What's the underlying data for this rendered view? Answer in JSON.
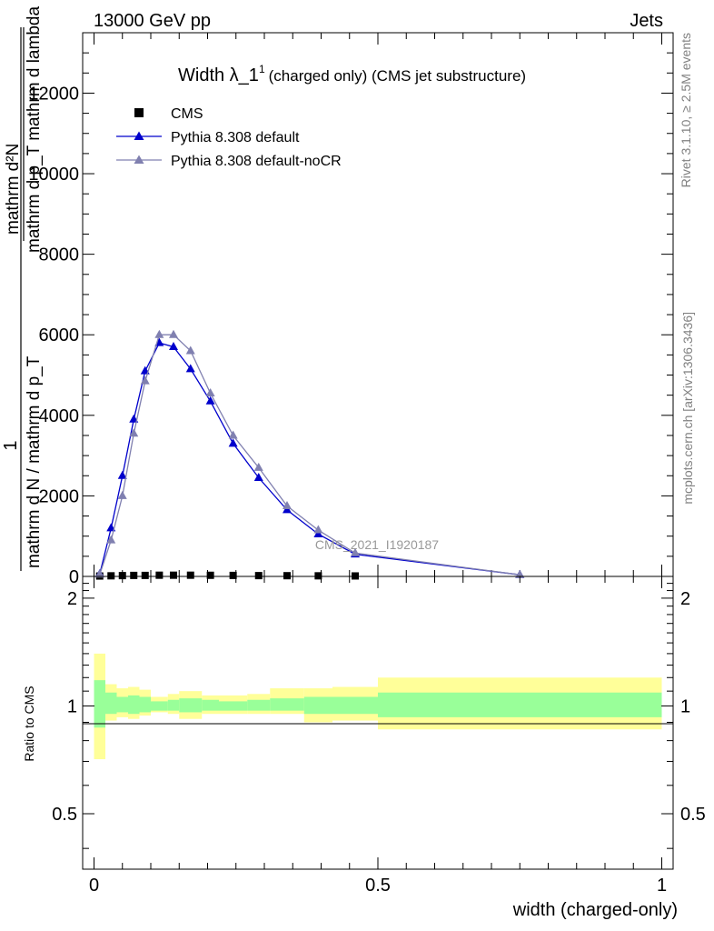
{
  "header": {
    "left": "13000 GeV pp",
    "right": "Jets"
  },
  "side_labels": {
    "rivet": "Rivet 3.1.10, ≥ 2.5M events",
    "mcplots": "mcplots.cern.ch [arXiv:1306.3436]"
  },
  "main_plot": {
    "title_prefix": "Width λ_1",
    "title_sup": "1",
    "title_suffix": "(charged only) (CMS jet substructure)",
    "watermark": "CMS_2021_I1920187",
    "ylabel_numerator": "mathrm d²N",
    "ylabel_denominator_top": "mathrm d p_T mathrm d lambda",
    "ylabel_one": "1",
    "ylabel_fraction_bottom": "mathrm d N / mathrm d p_T",
    "ytick_labels": [
      "0",
      "2000",
      "4000",
      "6000",
      "8000",
      "10000",
      "12000"
    ]
  },
  "ratio_plot": {
    "ylabel": "Ratio to CMS",
    "ytick_labels": [
      "0.5",
      "1",
      "2"
    ]
  },
  "x_axis": {
    "label": "width (charged-only)",
    "tick_labels": [
      "0",
      "0.5",
      "1"
    ]
  },
  "legend": {
    "placement": "top-left",
    "entries": [
      {
        "label": "CMS"
      },
      {
        "label": "Pythia 8.308 default"
      },
      {
        "label": "Pythia 8.308 default-noCR"
      }
    ]
  },
  "colors": {
    "cms": "#000000",
    "default": "#0000cc",
    "noCR": "#8080b0",
    "band_inner": "#99ff99",
    "band_outer": "#ffff99"
  },
  "chart_data": {
    "type": "line",
    "xlim": [
      -0.02,
      1.02
    ],
    "ylim": [
      0,
      13500
    ],
    "ratio_ylim": [
      0.35,
      2.3
    ],
    "ratio_scale": "log",
    "grid": false,
    "series": [
      {
        "name": "CMS",
        "style": "markers",
        "x": [
          0.01,
          0.03,
          0.05,
          0.07,
          0.09,
          0.115,
          0.14,
          0.17,
          0.205,
          0.245,
          0.29,
          0.34,
          0.395,
          0.46
        ],
        "y": [
          10,
          15,
          20,
          25,
          25,
          30,
          30,
          30,
          28,
          25,
          20,
          18,
          15,
          12
        ]
      },
      {
        "name": "Pythia 8.308 default",
        "x": [
          0.01,
          0.03,
          0.05,
          0.07,
          0.09,
          0.115,
          0.14,
          0.17,
          0.205,
          0.245,
          0.29,
          0.34,
          0.395,
          0.46,
          0.75
        ],
        "y": [
          60,
          1200,
          2500,
          3900,
          5100,
          5800,
          5700,
          5150,
          4350,
          3300,
          2450,
          1650,
          1050,
          550,
          40
        ]
      },
      {
        "name": "Pythia 8.308 default-noCR",
        "x": [
          0.01,
          0.03,
          0.05,
          0.07,
          0.09,
          0.115,
          0.14,
          0.17,
          0.205,
          0.245,
          0.29,
          0.34,
          0.395,
          0.46,
          0.75
        ],
        "y": [
          50,
          900,
          2000,
          3550,
          4850,
          6000,
          6000,
          5600,
          4550,
          3500,
          2700,
          1750,
          1150,
          580,
          40
        ]
      }
    ],
    "ratio_bands": {
      "edges": [
        0.0,
        0.02,
        0.04,
        0.06,
        0.08,
        0.1,
        0.13,
        0.15,
        0.19,
        0.22,
        0.27,
        0.31,
        0.37,
        0.42,
        0.5,
        1.0
      ],
      "inner_low": [
        0.87,
        0.95,
        0.96,
        0.95,
        0.96,
        0.97,
        0.97,
        0.96,
        0.97,
        0.97,
        0.97,
        0.97,
        0.95,
        0.95,
        0.93
      ],
      "inner_high": [
        1.18,
        1.09,
        1.06,
        1.07,
        1.06,
        1.03,
        1.04,
        1.05,
        1.04,
        1.03,
        1.04,
        1.05,
        1.06,
        1.06,
        1.09
      ],
      "outer_low": [
        0.71,
        0.91,
        0.93,
        0.92,
        0.94,
        0.96,
        0.95,
        0.92,
        0.95,
        0.95,
        0.95,
        0.95,
        0.9,
        0.91,
        0.86
      ],
      "outer_high": [
        1.4,
        1.15,
        1.12,
        1.13,
        1.11,
        1.06,
        1.08,
        1.1,
        1.07,
        1.07,
        1.08,
        1.12,
        1.12,
        1.13,
        1.2
      ]
    }
  }
}
